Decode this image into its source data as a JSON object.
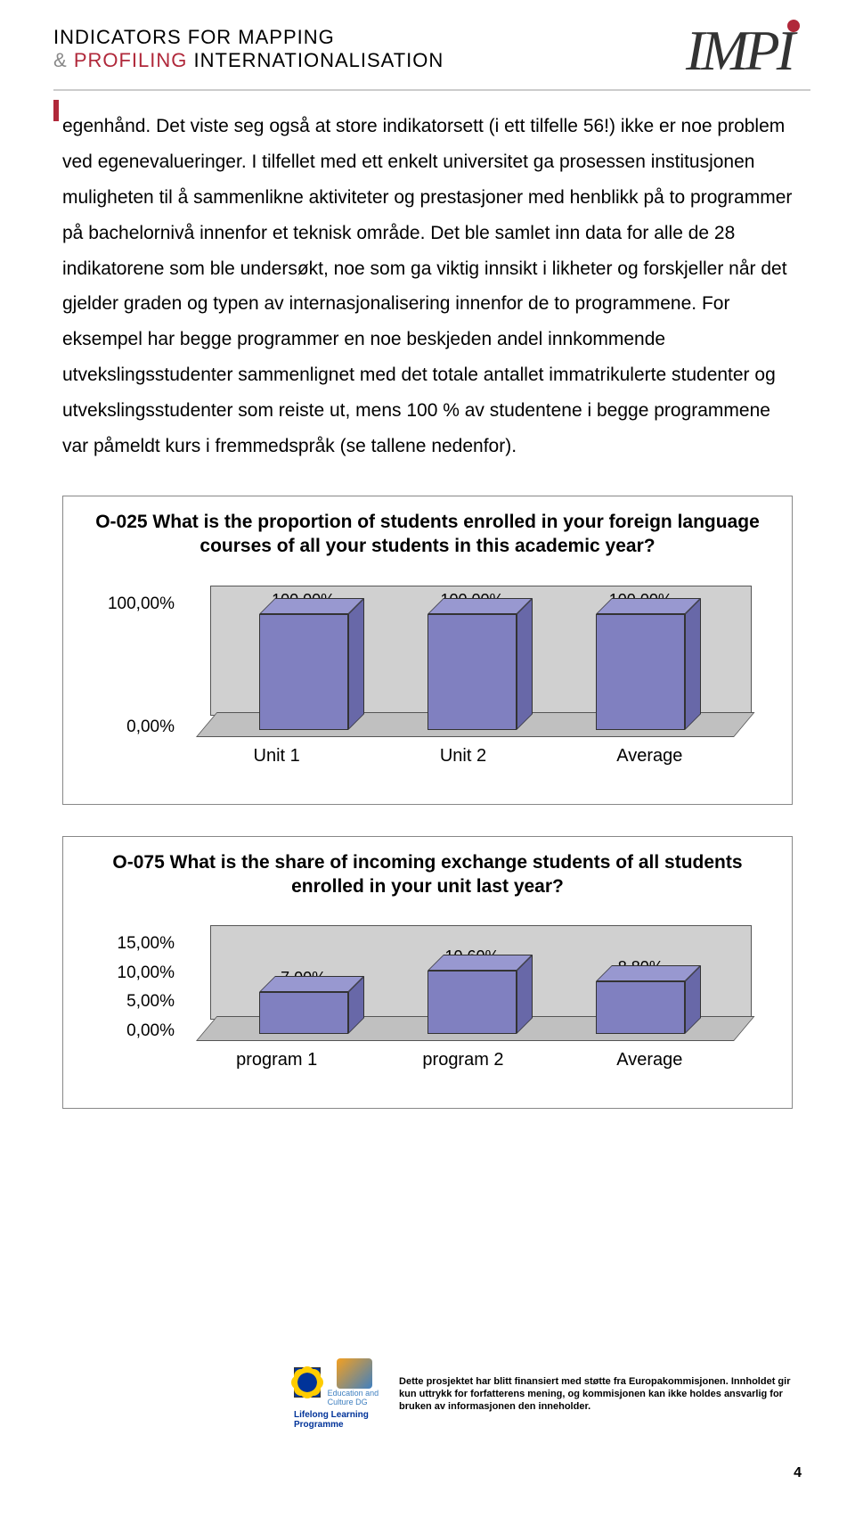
{
  "header": {
    "line1": "INDICATORS FOR MAPPING",
    "amp": "&",
    "profiling": "PROFILING",
    "rest": " INTERNATIONALISATION",
    "logo_text": "IMPI"
  },
  "body": {
    "paragraph": "egenhånd. Det viste seg også at store indikatorsett (i ett tilfelle 56!) ikke er noe problem ved egenevalueringer.\nI tilfellet med ett enkelt universitet ga prosessen institusjonen muligheten til å sammenlikne aktiviteter og prestasjoner med henblikk på to programmer på bachelornivå innenfor et teknisk område. Det ble samlet inn data for alle de 28 indikatorene som ble undersøkt, noe som ga viktig innsikt i likheter og forskjeller når det gjelder graden og typen av internasjonalisering innenfor de to programmene. For eksempel har begge programmer en noe beskjeden andel innkommende utvekslingsstudenter sammenlignet med det totale antallet immatrikulerte studenter og utvekslingsstudenter som reiste ut, mens 100 % av studentene i begge programmene var påmeldt kurs i fremmedspråk (se tallene nedenfor)."
  },
  "chart1": {
    "title": "O-025 What is the proportion of students enrolled in your foreign language courses of all your students in this academic year?",
    "y_ticks": [
      "100,00%",
      "0,00%"
    ],
    "ylim": [
      0,
      100
    ],
    "categories": [
      "Unit 1",
      "Unit 2",
      "Average"
    ],
    "values": [
      100,
      100,
      100
    ],
    "value_labels": [
      "100,00%",
      "100,00%",
      "100,00%"
    ],
    "bar_color": "#8080c0",
    "bar_top_color": "#9898d0",
    "bar_side_color": "#6868a8",
    "floor_color": "#c8c8c8",
    "title_fontsize": 21,
    "label_fontsize": 19,
    "type": "bar3d"
  },
  "chart2": {
    "title": "O-075 What is the share of incoming exchange students of all students enrolled in your unit last year?",
    "y_ticks": [
      "15,00%",
      "10,00%",
      "5,00%",
      "0,00%"
    ],
    "ylim": [
      0,
      15
    ],
    "categories": [
      "program 1",
      "program 2",
      "Average"
    ],
    "values": [
      7.0,
      10.6,
      8.8
    ],
    "value_labels": [
      "7,00%",
      "10,60%",
      "8,80%"
    ],
    "bar_color": "#8080c0",
    "bar_top_color": "#9898d0",
    "bar_side_color": "#6868a8",
    "floor_color": "#c8c8c8",
    "title_fontsize": 21,
    "label_fontsize": 19,
    "type": "bar3d"
  },
  "footer": {
    "llp": "Lifelong Learning Programme",
    "edu": "Education and Culture DG",
    "text": "Dette prosjektet har blitt finansiert med støtte fra Europakommisjonen. Innholdet gir kun uttrykk for forfatterens mening, og kommisjonen kan ikke holdes ansvarlig for bruken av informasjonen den inneholder."
  },
  "page_number": "4"
}
